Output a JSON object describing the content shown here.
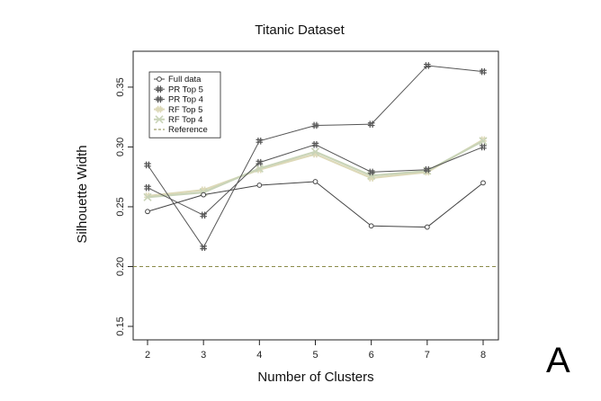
{
  "chart_data": {
    "type": "line",
    "title": "Titanic Dataset",
    "xlabel": "Number of Clusters",
    "ylabel": "Silhouette Width",
    "x": [
      2,
      3,
      4,
      5,
      6,
      7,
      8
    ],
    "xlim": [
      2,
      8
    ],
    "ylim": [
      0.15,
      0.38
    ],
    "yticks": [
      0.15,
      0.2,
      0.25,
      0.3,
      0.35
    ],
    "ytick_labels": [
      "0.15",
      "0.20",
      "0.25",
      "0.30",
      "0.35"
    ],
    "grid": false,
    "legend_position": "top-left",
    "series": [
      {
        "name": "Full data",
        "color": "#444444",
        "marker": "circle",
        "values": [
          0.246,
          0.26,
          0.268,
          0.271,
          0.234,
          0.233,
          0.27
        ]
      },
      {
        "name": "PR Top 5",
        "color": "#555555",
        "marker": "hash",
        "values": [
          0.266,
          0.243,
          0.287,
          0.302,
          0.279,
          0.281,
          0.3
        ]
      },
      {
        "name": "PR Top 4",
        "color": "#555555",
        "marker": "hash",
        "values": [
          0.285,
          0.216,
          0.305,
          0.318,
          0.319,
          0.368,
          0.363
        ]
      },
      {
        "name": "RF Top 5",
        "color": "#ddd9b8",
        "marker": "hash-light",
        "values": [
          0.259,
          0.264,
          0.281,
          0.294,
          0.274,
          0.279,
          0.306
        ]
      },
      {
        "name": "RF Top 4",
        "color": "#c9d4b8",
        "marker": "x",
        "values": [
          0.258,
          0.262,
          0.282,
          0.296,
          0.276,
          0.28,
          0.305
        ]
      }
    ],
    "reference": {
      "name": "Reference",
      "value": 0.2,
      "color": "#8a8a4a",
      "style": "dashed"
    },
    "panel_label": "A"
  }
}
